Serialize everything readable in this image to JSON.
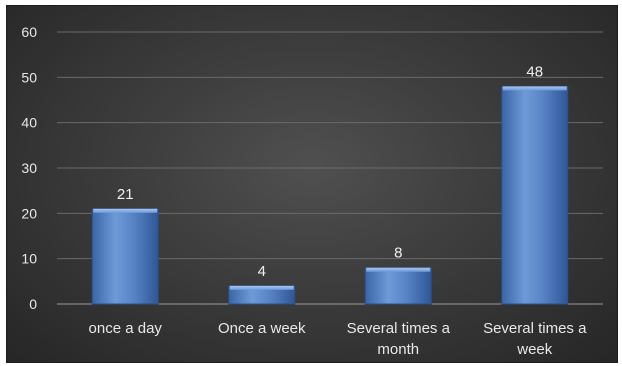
{
  "chart_data": {
    "type": "bar",
    "title": "",
    "xlabel": "",
    "ylabel": "",
    "categories": [
      [
        "once a day"
      ],
      [
        "Once a week"
      ],
      [
        "Several times a",
        "month"
      ],
      [
        "Several times a",
        "week"
      ]
    ],
    "values": [
      21,
      4,
      8,
      48
    ],
    "ylim": [
      0,
      60
    ],
    "yticks": [
      0,
      10,
      20,
      30,
      40,
      50,
      60
    ],
    "grid": true,
    "legend": "none",
    "colors": {
      "bar": "#4f81bd",
      "bar_light": "#8fb3e6",
      "bar_dark": "#3a66a8",
      "background": "#3a3a3a",
      "text": "#e8e8e8"
    }
  }
}
